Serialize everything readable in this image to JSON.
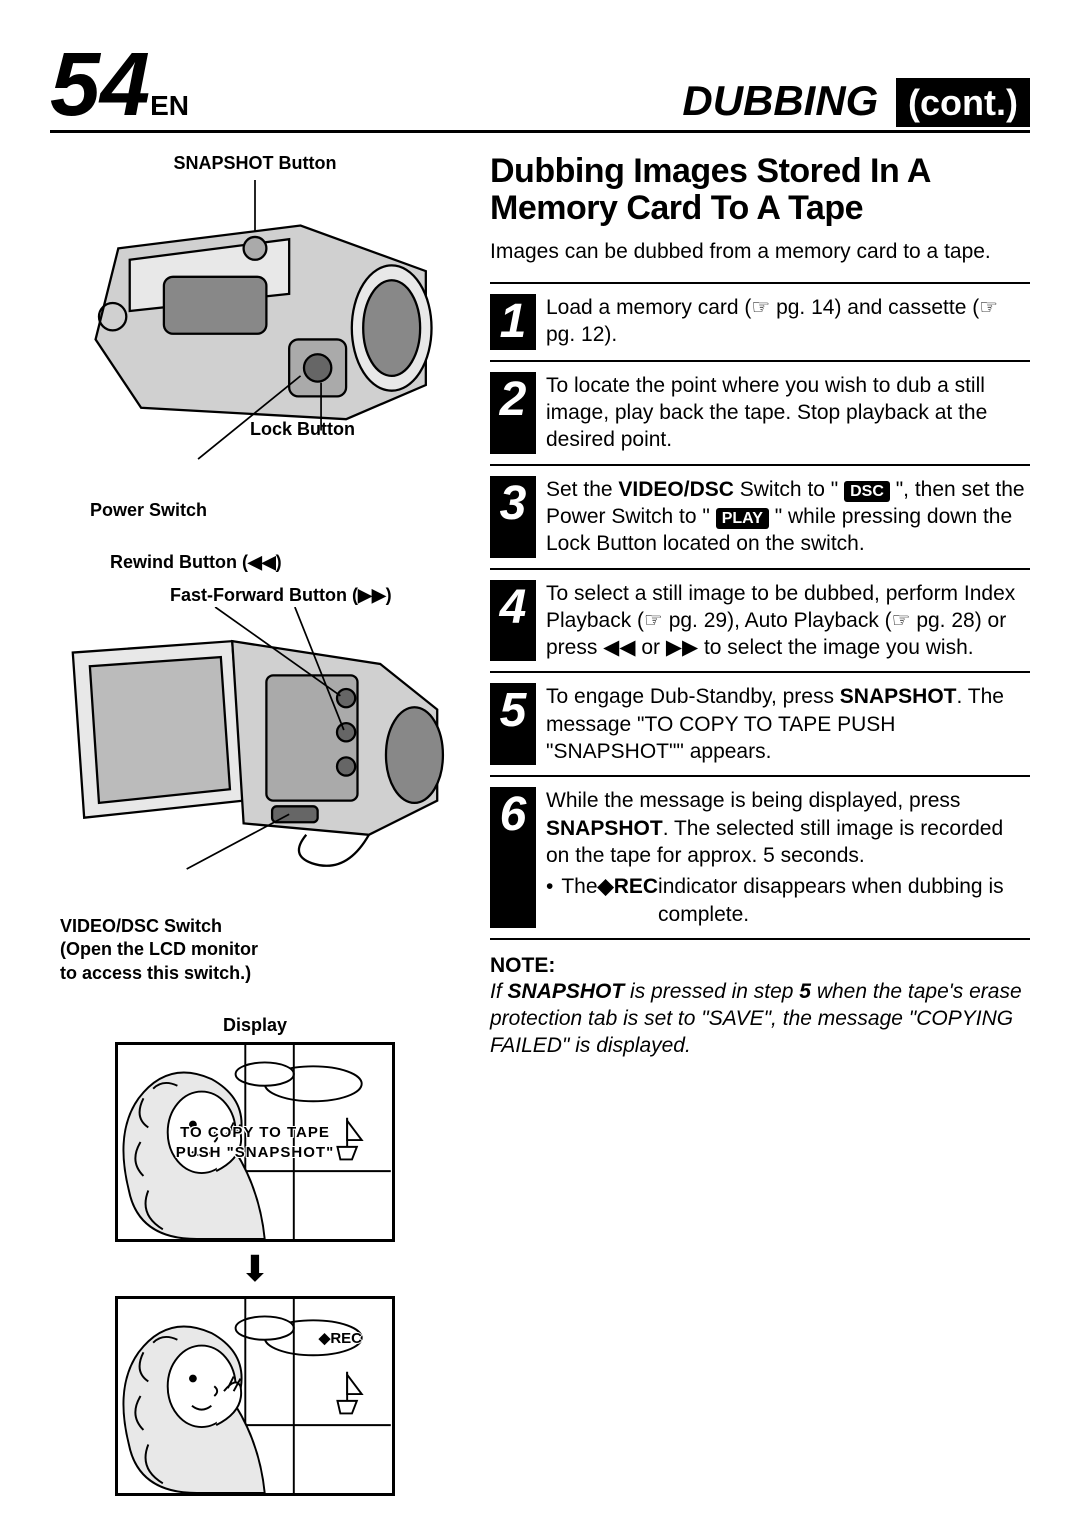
{
  "header": {
    "page_number": "54",
    "lang": "EN",
    "section": "DUBBING",
    "cont": "(cont.)"
  },
  "left": {
    "snapshot_label": "SNAPSHOT Button",
    "lock_label": "Lock Button",
    "power_label": "Power Switch",
    "rewind_label": "Rewind Button (◀◀)",
    "ff_label": "Fast-Forward Button (▶▶)",
    "videodsc_label": "VIDEO/DSC Switch\n(Open the LCD monitor\nto access this switch.)",
    "display_label": "Display",
    "screen1_line1": "TO COPY TO TAPE",
    "screen1_line2": "PUSH \"SNAPSHOT\"",
    "screen2_rec": "◆REC"
  },
  "right": {
    "title": "Dubbing Images Stored In A Memory Card To A Tape",
    "intro": "Images can be dubbed from a memory card to a tape.",
    "steps": [
      {
        "num": "1",
        "html": "Load a memory card (☞ pg. 14) and cassette (☞ pg. 12)."
      },
      {
        "num": "2",
        "html": "To locate the point where you wish to dub a still image, play back the tape. Stop playback at the desired point."
      },
      {
        "num": "3",
        "html": "Set the <b>VIDEO/DSC</b> Switch to \" <span class=\"chip\">DSC</span> \", then set the Power Switch to \" <span class=\"chip\">PLAY</span> \" while pressing down the Lock Button located on the switch."
      },
      {
        "num": "4",
        "html": "To select a still image to be dubbed, perform Index Playback (☞ pg. 29), Auto Playback (☞ pg. 28) or press ◀◀ or ▶▶ to select the image you wish."
      },
      {
        "num": "5",
        "html": "To engage Dub-Standby, press <b>SNAPSHOT</b>. The message \"TO COPY TO TAPE PUSH &quot;SNAPSHOT&quot;\" appears."
      },
      {
        "num": "6",
        "html": "While the message is being displayed, press <b>SNAPSHOT</b>. The selected still image is recorded on the tape for approx. 5 seconds.<div class=\"bullet\">The <b>◆REC</b> indicator disappears when dubbing is complete.</div>"
      }
    ],
    "note_head": "NOTE:",
    "note_text": "If <b>SNAPSHOT</b> is pressed in step <b>5</b> when the tape's erase protection tab is set to \"SAVE\", the message \"COPYING FAILED\" is displayed."
  },
  "colors": {
    "black": "#000000",
    "white": "#ffffff",
    "gray_fill": "#d0d0d0",
    "gray_light": "#e8e8e8"
  }
}
